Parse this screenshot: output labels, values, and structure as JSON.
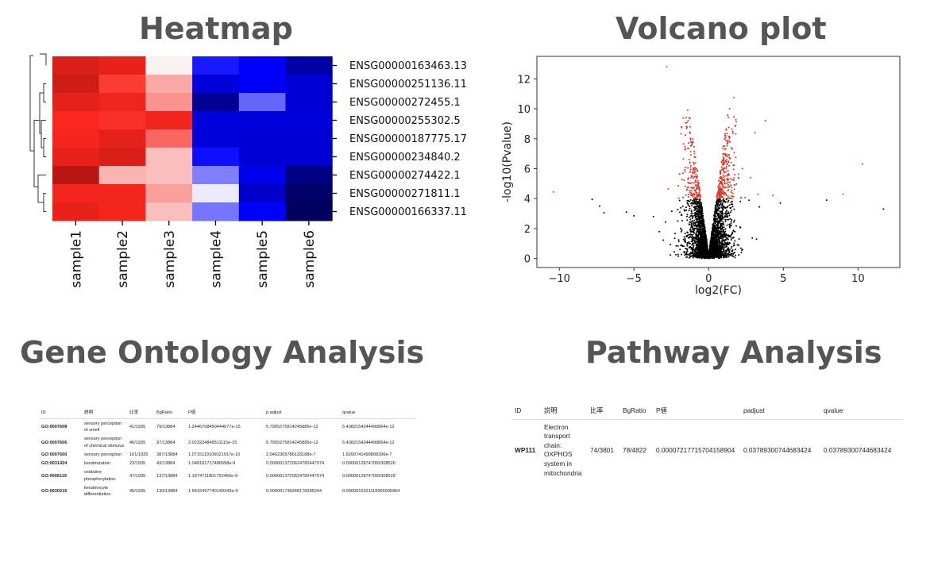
{
  "titles": {
    "heatmap": "Heatmap",
    "volcano": "Volcano plot",
    "go": "Gene Ontology Analysis",
    "pathway": "Pathway Analysis"
  },
  "chart_data": [
    {
      "type": "heatmap",
      "title": "Heatmap",
      "columns": [
        "sample1",
        "sample2",
        "sample3",
        "sample4",
        "sample5",
        "sample6"
      ],
      "rows": [
        "ENSG00000163463.13",
        "ENSG00000251136.11",
        "ENSG00000272455.1",
        "ENSG00000255302.5",
        "ENSG00000187775.17",
        "ENSG00000234840.2",
        "ENSG00000274422.1",
        "ENSG00000271811.1",
        "ENSG00000166337.11"
      ],
      "values": [
        [
          0.65,
          0.58,
          0.03,
          -0.45,
          -0.5,
          -0.75
        ],
        [
          0.7,
          0.45,
          0.2,
          -0.6,
          -0.52,
          -0.62
        ],
        [
          0.6,
          0.55,
          0.25,
          -0.8,
          -0.3,
          -0.62
        ],
        [
          0.5,
          0.48,
          0.55,
          -0.6,
          -0.6,
          -0.6
        ],
        [
          0.52,
          0.6,
          0.35,
          -0.6,
          -0.62,
          -0.62
        ],
        [
          0.58,
          0.65,
          0.15,
          -0.47,
          -0.62,
          -0.62
        ],
        [
          0.8,
          0.17,
          0.15,
          -0.25,
          -0.55,
          -0.85
        ],
        [
          0.53,
          0.53,
          0.22,
          -0.04,
          -0.65,
          -0.92
        ],
        [
          0.58,
          0.53,
          0.15,
          -0.27,
          -0.5,
          -0.95
        ]
      ],
      "colormap": "seismic",
      "vrange": [
        -1,
        1
      ],
      "dendrogram": "rows"
    },
    {
      "type": "scatter",
      "title": "Volcano plot",
      "xlabel": "log2(FC)",
      "ylabel": "-log10(Pvalue)",
      "xlim": [
        -11.5,
        12.8
      ],
      "ylim": [
        -0.6,
        13.5
      ],
      "xticks": [
        -10,
        -5,
        0,
        5,
        10
      ],
      "xtick_labels": [
        "−10",
        "−5",
        "0",
        "5",
        "10"
      ],
      "yticks": [
        0,
        2,
        4,
        6,
        8,
        10,
        12
      ],
      "significance_threshold": 4,
      "colors": {
        "significant": "#e03020",
        "not_significant": "#000000"
      },
      "bulk_point_count": 3500,
      "outliers": [
        [
          -2.8,
          12.8
        ],
        [
          1.7,
          10.75
        ],
        [
          1.4,
          10
        ],
        [
          -1.4,
          9.9
        ],
        [
          3.8,
          9.2
        ],
        [
          3.1,
          8.4
        ],
        [
          10.3,
          6.3
        ],
        [
          -10.4,
          4.45
        ],
        [
          -2.7,
          4.65
        ],
        [
          2.8,
          5.4
        ],
        [
          3.3,
          4.3
        ],
        [
          4.3,
          4.2
        ],
        [
          9.0,
          4.3
        ],
        [
          -7.8,
          3.95
        ],
        [
          -7.3,
          3.5
        ],
        [
          -7.0,
          3.05
        ],
        [
          -5.5,
          3.1
        ],
        [
          -5.0,
          2.85
        ],
        [
          4.8,
          3.7
        ],
        [
          7.9,
          3.9
        ],
        [
          11.7,
          3.3
        ],
        [
          3.4,
          3.45
        ],
        [
          3.2,
          1.3
        ],
        [
          -3.7,
          2.8
        ],
        [
          -3.3,
          1.8
        ]
      ]
    }
  ],
  "go_table": {
    "headers": [
      "ID",
      "説明",
      "比率",
      "BgRatio",
      "P値",
      "p.adjust",
      "qvalue"
    ],
    "rows": [
      [
        "GO:0007608",
        "sensory perception of smell",
        "41/1935",
        "79/13884",
        "1.2446708450444677e-15",
        "5.7955275814245885e-12",
        "5.4382154244490864e-12"
      ],
      [
        "GO:0007606",
        "sensory perception of chemical stimulus",
        "46/1935",
        "97/13884",
        "2.023224849511115e-15",
        "5.7955275814245885e-12",
        "5.4382154244490864e-12"
      ],
      [
        "GO:0007600",
        "sensory perception",
        "101/1935",
        "387/13884",
        "1.0715119106021917e-10",
        "2.0462305786133188e-7",
        "1.9200741499808396e-7"
      ],
      [
        "GO:0031424",
        "keratinization",
        "23/1935",
        "43/13884",
        "1.048181717486558e-9",
        "0.0000013720624782447974",
        "0.0000012874705930852​6"
      ],
      [
        "GO:0006119",
        "oxidative phosphorylation",
        "47/1935",
        "137/13884",
        "1.1974711801752466e-9",
        "0.0000013720624782447974",
        "0.0000012874705930852​6"
      ],
      [
        "GO:0030216",
        "keratinocyte differentiation",
        "45/1935",
        "130/13884",
        "1.9415497740149343e-9",
        "0.0000017393481782953​44",
        "0.0000016321119965005964"
      ]
    ]
  },
  "pathway_table": {
    "headers": [
      "ID",
      "説明",
      "比率",
      "BgRatio",
      "P値",
      "padjust",
      "qvalue"
    ],
    "rows": [
      [
        "WP111",
        "Electron transport chain: OXPHOS system in mitochondria",
        "74/3801",
        "78/4822",
        "0.00007217715704158904",
        "0.03789300744683424",
        "0.03789300744683424"
      ]
    ]
  }
}
